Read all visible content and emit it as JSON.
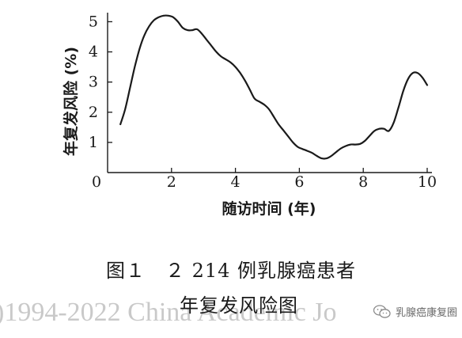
{
  "chart_data": {
    "type": "line",
    "ylabel": "年复发风险 (%)",
    "xlabel": "随访时间 (年)",
    "xlim": [
      0,
      10
    ],
    "ylim": [
      0,
      5.3
    ],
    "x_ticks": [
      "0",
      "2",
      "4",
      "6",
      "8",
      "10"
    ],
    "y_ticks": [
      "1",
      "2",
      "3",
      "4",
      "5"
    ],
    "grid": false,
    "series": [
      {
        "x": [
          0.4,
          0.55,
          0.7,
          0.85,
          1.0,
          1.15,
          1.3,
          1.45,
          1.6,
          1.75,
          1.9,
          2.05,
          2.2,
          2.35,
          2.5,
          2.65,
          2.8,
          2.95,
          3.1,
          3.25,
          3.4,
          3.55,
          3.7,
          3.85,
          4.0,
          4.15,
          4.3,
          4.45,
          4.6,
          4.75,
          4.9,
          5.05,
          5.2,
          5.35,
          5.5,
          5.65,
          5.8,
          5.95,
          6.1,
          6.25,
          6.4,
          6.55,
          6.7,
          6.85,
          7.0,
          7.15,
          7.3,
          7.45,
          7.6,
          7.75,
          7.9,
          8.05,
          8.2,
          8.35,
          8.5,
          8.65,
          8.8,
          8.95,
          9.1,
          9.25,
          9.4,
          9.55,
          9.7,
          9.85,
          10.0
        ],
        "y": [
          1.6,
          2.1,
          2.8,
          3.5,
          4.1,
          4.55,
          4.85,
          5.05,
          5.15,
          5.2,
          5.2,
          5.15,
          5.0,
          4.8,
          4.72,
          4.72,
          4.75,
          4.6,
          4.4,
          4.2,
          4.0,
          3.85,
          3.75,
          3.65,
          3.5,
          3.3,
          3.05,
          2.75,
          2.45,
          2.35,
          2.25,
          2.1,
          1.85,
          1.6,
          1.4,
          1.2,
          1.0,
          0.85,
          0.78,
          0.72,
          0.65,
          0.55,
          0.47,
          0.47,
          0.55,
          0.68,
          0.8,
          0.88,
          0.93,
          0.93,
          0.95,
          1.05,
          1.22,
          1.38,
          1.45,
          1.45,
          1.38,
          1.65,
          2.15,
          2.7,
          3.1,
          3.3,
          3.3,
          3.15,
          2.9
        ]
      }
    ]
  },
  "caption": {
    "line1": "图１　２ 214 例乳腺癌患者",
    "line2": "年复发风险图"
  },
  "watermark": {
    "left_text": ")1994-2022 China Academic Jo",
    "badge_text": "乳腺癌康复圈"
  }
}
